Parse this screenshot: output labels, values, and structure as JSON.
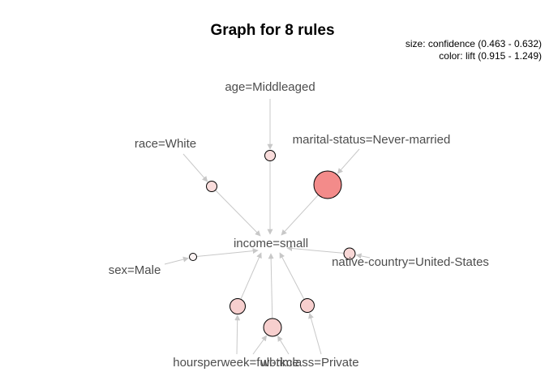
{
  "title": "Graph for 8 rules",
  "legend": {
    "size": "size: confidence (0.463 - 0.632)",
    "color": "color: lift (0.915 - 1.249)"
  },
  "colors": {
    "edge": "#c8c8c8",
    "label": "#4d4d4d",
    "node_stroke": "#000000"
  },
  "items": [
    {
      "id": "age",
      "label": "age=Middleaged"
    },
    {
      "id": "race",
      "label": "race=White"
    },
    {
      "id": "marital",
      "label": "marital-status=Never-married"
    },
    {
      "id": "income",
      "label": "income=small"
    },
    {
      "id": "native",
      "label": "native-country=United-States"
    },
    {
      "id": "sex",
      "label": "sex=Male"
    },
    {
      "id": "hours",
      "label": "hoursperweek=full-time"
    },
    {
      "id": "workclass",
      "label": "workclass=Private"
    }
  ],
  "rules": [
    {
      "id": "r1",
      "lhs": "age",
      "rhs": "income",
      "fill": "#f9dcdb"
    },
    {
      "id": "r2",
      "lhs": "race",
      "rhs": "income",
      "fill": "#f9dcdb"
    },
    {
      "id": "r3",
      "lhs": "marital",
      "rhs": "income",
      "fill": "#f38b8a"
    },
    {
      "id": "r4",
      "lhs": "native",
      "rhs": "income",
      "fill": "#f8d7d6"
    },
    {
      "id": "r5",
      "lhs": "sex",
      "rhs": "income",
      "fill": "#fdf4f4"
    },
    {
      "id": "r6",
      "lhs": "hours",
      "rhs": "income",
      "fill": "#f7cfce"
    },
    {
      "id": "r7",
      "lhs": "hours",
      "rhs": "income",
      "fill": "#f7cfce",
      "also_lhs": "workclass"
    },
    {
      "id": "r8",
      "lhs": "workclass",
      "rhs": "income",
      "fill": "#f7cfce"
    }
  ]
}
